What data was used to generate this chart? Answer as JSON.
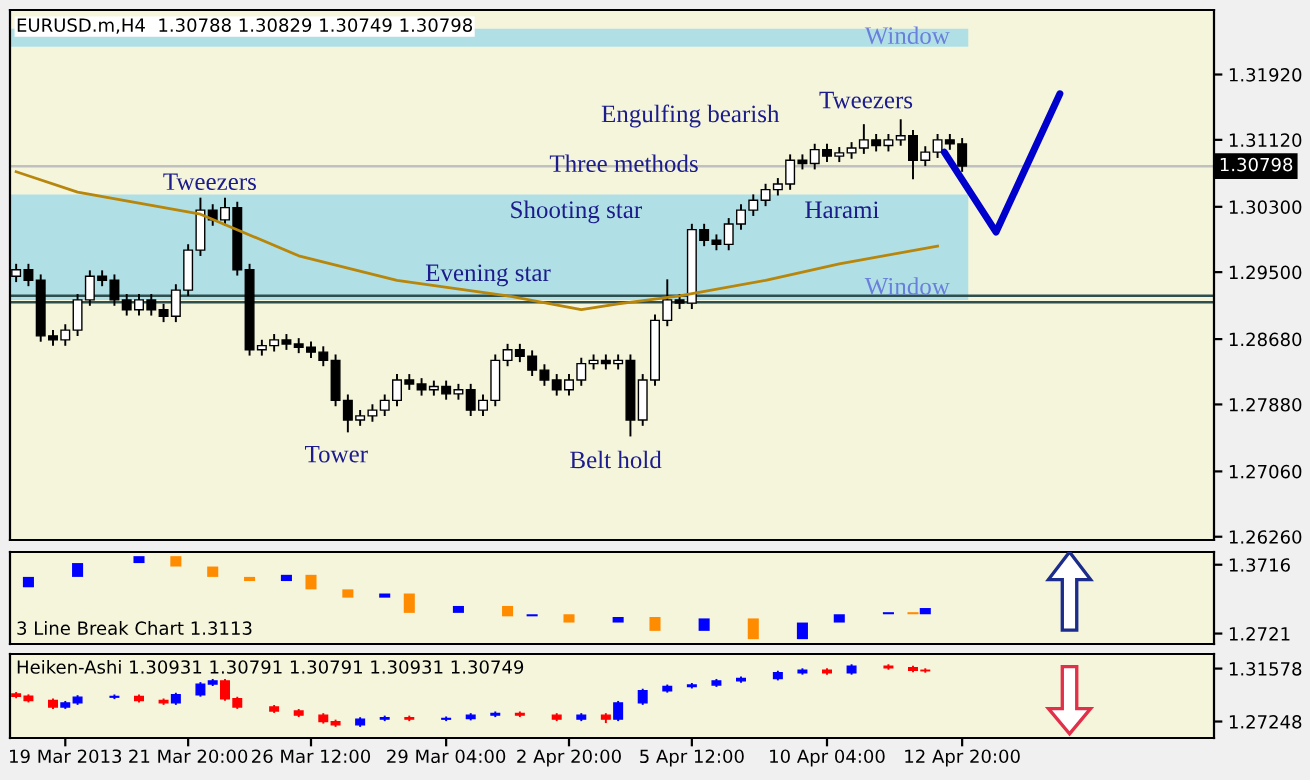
{
  "chart_data": [
    {
      "type": "candlestick",
      "title": "EURUSD.m,H4  1.30788 1.30829 1.30749 1.30798",
      "tick_labels": "y",
      "ylim": [
        1.2622,
        1.3271
      ],
      "yticks": [
        {
          "value": 1.3192,
          "label": "1.31920"
        },
        {
          "value": 1.3112,
          "label": "1.31120"
        },
        {
          "value": 1.303,
          "label": "1.30300"
        },
        {
          "value": 1.295,
          "label": "1.29500"
        },
        {
          "value": 1.2868,
          "label": "1.28680"
        },
        {
          "value": 1.2788,
          "label": "1.27880"
        },
        {
          "value": 1.2706,
          "label": "1.27060"
        },
        {
          "value": 1.2626,
          "label": "1.26260"
        }
      ],
      "categories": [
        null,
        null,
        null,
        null,
        null,
        null,
        null,
        null,
        null,
        null,
        null,
        null,
        null,
        null,
        null,
        null,
        null,
        null,
        null,
        null,
        null,
        null,
        null,
        null,
        null,
        null,
        null,
        null,
        null,
        null,
        null,
        null,
        null,
        null,
        null,
        null,
        null,
        null,
        null,
        null,
        null,
        null,
        null,
        null,
        null,
        null,
        null,
        null,
        null,
        null,
        null,
        null,
        null,
        null,
        null,
        null,
        null,
        null,
        null,
        null,
        null,
        null,
        null,
        null,
        null,
        null,
        null,
        null,
        null,
        null,
        null,
        null,
        null,
        null,
        null,
        null,
        null,
        null,
        null,
        null,
        null,
        null,
        null,
        null,
        null,
        null,
        null,
        null,
        null,
        null,
        null,
        null,
        null,
        null,
        null,
        null,
        null,
        null
      ],
      "ohlc": [
        [
          1.2945,
          1.2959,
          1.2939,
          1.2953
        ],
        [
          1.2953,
          1.2959,
          1.2934,
          1.294
        ],
        [
          1.294,
          1.2946,
          1.2866,
          1.2872
        ],
        [
          1.2872,
          1.2878,
          1.2861,
          1.2867
        ],
        [
          1.2867,
          1.2885,
          1.2861,
          1.2879
        ],
        [
          1.2879,
          1.2922,
          1.2873,
          1.2916
        ],
        [
          1.2916,
          1.2951,
          1.291,
          1.2945
        ],
        [
          1.2945,
          1.2951,
          1.2934,
          1.294
        ],
        [
          1.294,
          1.2946,
          1.291,
          1.2916
        ],
        [
          1.2916,
          1.2922,
          1.2898,
          1.2904
        ],
        [
          1.2904,
          1.2922,
          1.2898,
          1.2916
        ],
        [
          1.2916,
          1.2922,
          1.2898,
          1.2904
        ],
        [
          1.2904,
          1.291,
          1.289,
          1.2896
        ],
        [
          1.2896,
          1.2934,
          1.289,
          1.2928
        ],
        [
          1.2928,
          1.2983,
          1.2922,
          1.2977
        ],
        [
          1.2977,
          1.304,
          1.2971,
          1.3026
        ],
        [
          1.3026,
          1.3032,
          1.3008,
          1.3014
        ],
        [
          1.3014,
          1.304,
          1.3008,
          1.3029
        ],
        [
          1.3029,
          1.3035,
          1.2947,
          1.2953
        ],
        [
          1.2953,
          1.2959,
          1.2849,
          1.2855
        ],
        [
          1.2855,
          1.2866,
          1.2849,
          1.286
        ],
        [
          1.286,
          1.2873,
          1.2854,
          1.2867
        ],
        [
          1.2867,
          1.2873,
          1.2856,
          1.2862
        ],
        [
          1.2862,
          1.2868,
          1.2852,
          1.2858
        ],
        [
          1.2858,
          1.2864,
          1.2846,
          1.2852
        ],
        [
          1.2852,
          1.2858,
          1.2836,
          1.2842
        ],
        [
          1.2842,
          1.2848,
          1.2787,
          1.2793
        ],
        [
          1.2793,
          1.2799,
          1.2755,
          1.2769
        ],
        [
          1.2769,
          1.278,
          1.2763,
          1.2774
        ],
        [
          1.2774,
          1.2787,
          1.2768,
          1.2781
        ],
        [
          1.2781,
          1.2799,
          1.2775,
          1.2793
        ],
        [
          1.2793,
          1.2824,
          1.2787,
          1.2818
        ],
        [
          1.2818,
          1.2824,
          1.2807,
          1.2813
        ],
        [
          1.2813,
          1.2819,
          1.28,
          1.2806
        ],
        [
          1.2806,
          1.2816,
          1.28,
          1.281
        ],
        [
          1.281,
          1.2816,
          1.2795,
          1.2801
        ],
        [
          1.2801,
          1.2812,
          1.2795,
          1.2806
        ],
        [
          1.2806,
          1.2812,
          1.2775,
          1.2781
        ],
        [
          1.2781,
          1.2799,
          1.2775,
          1.2793
        ],
        [
          1.2793,
          1.2848,
          1.2787,
          1.2842
        ],
        [
          1.2842,
          1.2861,
          1.2836,
          1.2855
        ],
        [
          1.2855,
          1.2861,
          1.2841,
          1.2847
        ],
        [
          1.2847,
          1.2853,
          1.2824,
          1.283
        ],
        [
          1.283,
          1.2836,
          1.2812,
          1.2818
        ],
        [
          1.2818,
          1.2824,
          1.28,
          1.2806
        ],
        [
          1.2806,
          1.2824,
          1.28,
          1.2818
        ],
        [
          1.2818,
          1.2844,
          1.2812,
          1.2838
        ],
        [
          1.2838,
          1.2848,
          1.2832,
          1.2842
        ],
        [
          1.2842,
          1.2848,
          1.2832,
          1.2838
        ],
        [
          1.2838,
          1.2848,
          1.2832,
          1.2842
        ],
        [
          1.2842,
          1.2848,
          1.275,
          1.2769
        ],
        [
          1.2769,
          1.2824,
          1.2763,
          1.2818
        ],
        [
          1.2818,
          1.2897,
          1.2812,
          1.2891
        ],
        [
          1.2891,
          1.294,
          1.2885,
          1.2916
        ],
        [
          1.2916,
          1.2922,
          1.2906,
          1.2912
        ],
        [
          1.2912,
          1.3008,
          1.2906,
          1.3002
        ],
        [
          1.3002,
          1.3008,
          1.2983,
          1.2989
        ],
        [
          1.2989,
          1.2995,
          1.2978,
          1.2984
        ],
        [
          1.2984,
          1.3015,
          1.2978,
          1.3009
        ],
        [
          1.3009,
          1.3032,
          1.3003,
          1.3026
        ],
        [
          1.3026,
          1.3044,
          1.302,
          1.3038
        ],
        [
          1.3038,
          1.3057,
          1.3032,
          1.3051
        ],
        [
          1.3051,
          1.3064,
          1.3045,
          1.3058
        ],
        [
          1.3058,
          1.3093,
          1.3052,
          1.3087
        ],
        [
          1.3087,
          1.3093,
          1.3077,
          1.3083
        ],
        [
          1.3083,
          1.3106,
          1.3077,
          1.31
        ],
        [
          1.31,
          1.3106,
          1.3086,
          1.3092
        ],
        [
          1.3092,
          1.3102,
          1.3086,
          1.3096
        ],
        [
          1.3096,
          1.3108,
          1.309,
          1.3102
        ],
        [
          1.3102,
          1.313,
          1.3096,
          1.3112
        ],
        [
          1.3112,
          1.3118,
          1.3099,
          1.3105
        ],
        [
          1.3105,
          1.3118,
          1.3099,
          1.3112
        ],
        [
          1.3112,
          1.3136,
          1.3106,
          1.3117
        ],
        [
          1.3117,
          1.3123,
          1.3065,
          1.3087
        ],
        [
          1.3087,
          1.3103,
          1.3081,
          1.3097
        ],
        [
          1.3097,
          1.3118,
          1.3091,
          1.3112
        ],
        [
          1.3112,
          1.3118,
          1.3101,
          1.3107
        ],
        [
          1.3107,
          1.3113,
          1.3074,
          1.308
        ],
        null,
        null,
        null,
        null,
        null,
        null,
        null,
        null,
        null,
        null,
        null,
        null,
        null,
        null,
        null,
        null,
        null,
        null,
        null,
        null
      ],
      "colors": [
        "#ffffff",
        "#000000",
        "#000000",
        "#000000",
        "#ffffff",
        "#ffffff",
        "#ffffff",
        "#000000",
        "#000000",
        "#000000",
        "#ffffff",
        "#000000",
        "#000000",
        "#ffffff",
        "#ffffff",
        "#ffffff",
        "#000000",
        "#ffffff",
        "#000000",
        "#000000",
        "#ffffff",
        "#ffffff",
        "#000000",
        "#000000",
        "#000000",
        "#000000",
        "#000000",
        "#000000",
        "#ffffff",
        "#ffffff",
        "#ffffff",
        "#ffffff",
        "#000000",
        "#000000",
        "#ffffff",
        "#000000",
        "#ffffff",
        "#000000",
        "#ffffff",
        "#ffffff",
        "#ffffff",
        "#000000",
        "#000000",
        "#000000",
        "#000000",
        "#ffffff",
        "#ffffff",
        "#ffffff",
        "#000000",
        "#ffffff",
        "#000000",
        "#ffffff",
        "#ffffff",
        "#ffffff",
        "#000000",
        "#ffffff",
        "#000000",
        "#000000",
        "#ffffff",
        "#ffffff",
        "#ffffff",
        "#ffffff",
        "#ffffff",
        "#ffffff",
        "#000000",
        "#ffffff",
        "#000000",
        "#ffffff",
        "#ffffff",
        "#ffffff",
        "#000000",
        "#ffffff",
        "#ffffff",
        "#000000",
        "#ffffff",
        "#ffffff",
        "#000000",
        "#000000",
        null,
        null,
        null,
        null,
        null,
        null,
        null,
        null,
        null,
        null,
        null,
        null,
        null,
        null,
        null,
        null,
        null,
        null,
        null,
        null
      ],
      "series": [
        {
          "type": "line",
          "color": "#b8860b",
          "values": [
            1.3073,
            null,
            null,
            null,
            null,
            1.3048,
            null,
            null,
            null,
            null,
            null,
            null,
            null,
            null,
            null,
            1.3021,
            null,
            null,
            null,
            null,
            null,
            null,
            null,
            1.297,
            null,
            null,
            null,
            null,
            null,
            null,
            null,
            1.294,
            null,
            null,
            null,
            null,
            null,
            null,
            null,
            null,
            1.2921,
            null,
            null,
            null,
            null,
            null,
            1.2904,
            null,
            null,
            1.2911,
            null,
            null,
            null,
            null,
            1.2921,
            null,
            null,
            null,
            null,
            null,
            null,
            1.294,
            null,
            null,
            null,
            null,
            null,
            1.296,
            null,
            null,
            null,
            null,
            null,
            null,
            null,
            1.2982,
            null,
            null,
            null,
            null,
            null,
            null,
            null,
            null,
            null,
            null,
            null,
            null,
            null,
            null,
            null,
            null,
            null,
            null,
            null,
            null,
            null,
            null
          ]
        }
      ],
      "bands": [
        {
          "axis": "y",
          "from": 1.3226,
          "to": 1.3248,
          "label": "Window",
          "color": "#b0e0e6"
        },
        {
          "axis": "y",
          "from": 1.2916,
          "to": 1.3045,
          "label": "Window",
          "color": "#b0e0e6"
        }
      ],
      "ref_lines": [
        {
          "axis": "y",
          "value": 1.30798,
          "label": "1.30798",
          "color": "#c0c0c0"
        },
        {
          "axis": "y",
          "value": 1.2921,
          "color": "#2f4f4f"
        },
        {
          "axis": "y",
          "value": 1.2913,
          "color": "#2f4f4f"
        }
      ],
      "annotations": [
        "Tweezers",
        "Tower",
        "Evening star",
        "Belt hold",
        "Shooting star",
        "Three methods",
        "Engulfing bearish",
        "Tweezers",
        "Harami"
      ]
    },
    {
      "type": "bar",
      "title": "3 Line Break Chart 1.3113",
      "tick_labels": "y",
      "ylim": [
        1.257,
        1.39
      ],
      "yticks": [
        1.3716,
        1.2721
      ],
      "categories": [
        null,
        null,
        null,
        null,
        null,
        null,
        null,
        null,
        null,
        null,
        null,
        null,
        null,
        null,
        null,
        null,
        null,
        null,
        null,
        null,
        null,
        null,
        null,
        null,
        null,
        null,
        null,
        null,
        null,
        null,
        null,
        null,
        null,
        null,
        null,
        null,
        null,
        null,
        null,
        null,
        null,
        null,
        null,
        null,
        null,
        null,
        null,
        null,
        null,
        null,
        null,
        null,
        null,
        null,
        null,
        null,
        null,
        null,
        null,
        null,
        null,
        null,
        null,
        null,
        null,
        null,
        null,
        null,
        null,
        null,
        null,
        null,
        null,
        null,
        null,
        null,
        null,
        null,
        null,
        null,
        null,
        null,
        null,
        null,
        null,
        null,
        null,
        null,
        null,
        null,
        null,
        null,
        null,
        null,
        null,
        null,
        null,
        null
      ],
      "base": [
        null,
        1.339,
        null,
        null,
        null,
        1.354,
        null,
        null,
        null,
        null,
        1.374,
        null,
        null,
        1.384,
        null,
        null,
        1.369,
        null,
        null,
        1.354,
        null,
        null,
        1.348,
        null,
        1.357,
        null,
        null,
        1.336,
        null,
        null,
        1.324,
        null,
        1.33,
        null,
        null,
        null,
        1.302,
        null,
        null,
        null,
        1.312,
        null,
        1.297,
        null,
        null,
        1.3,
        null,
        null,
        null,
        1.288,
        null,
        null,
        1.296,
        null,
        null,
        null,
        1.276,
        null,
        null,
        null,
        1.294,
        null,
        null,
        null,
        1.264,
        null,
        null,
        1.288,
        null,
        null,
        null,
        1.3,
        null,
        1.303,
        1.3,
        null,
        null,
        null,
        null,
        null,
        null,
        null,
        null,
        null,
        null,
        null,
        null,
        null,
        null,
        null,
        null,
        null,
        null,
        null,
        null,
        null,
        null,
        null
      ],
      "values": [
        null,
        0.015,
        null,
        null,
        null,
        0.02,
        null,
        null,
        null,
        null,
        0.01,
        null,
        null,
        -0.015,
        null,
        null,
        -0.015,
        null,
        null,
        -0.006,
        null,
        null,
        0.009,
        null,
        -0.021,
        null,
        null,
        -0.012,
        null,
        null,
        0.006,
        null,
        -0.028,
        null,
        null,
        null,
        0.01,
        null,
        null,
        null,
        -0.015,
        null,
        0.003,
        null,
        null,
        -0.012,
        null,
        null,
        null,
        0.008,
        null,
        null,
        -0.02,
        null,
        null,
        null,
        0.018,
        null,
        null,
        null,
        -0.03,
        null,
        null,
        null,
        0.024,
        null,
        null,
        0.012,
        null,
        null,
        null,
        0.003,
        null,
        -0.003,
        0.009,
        null,
        null,
        null,
        null,
        null,
        null,
        null,
        null,
        null,
        null,
        null,
        null,
        null,
        null,
        null,
        null,
        null,
        null,
        null,
        null,
        null,
        null,
        null
      ],
      "colors": [
        null,
        "#0000ff",
        null,
        null,
        null,
        "#0000ff",
        null,
        null,
        null,
        null,
        "#0000ff",
        null,
        null,
        "#ff8c00",
        null,
        null,
        "#ff8c00",
        null,
        null,
        "#ff8c00",
        null,
        null,
        "#0000ff",
        null,
        "#ff8c00",
        null,
        null,
        "#ff8c00",
        null,
        null,
        "#0000ff",
        null,
        "#ff8c00",
        null,
        null,
        null,
        "#0000ff",
        null,
        null,
        null,
        "#ff8c00",
        null,
        "#0000ff",
        null,
        null,
        "#ff8c00",
        null,
        null,
        null,
        "#0000ff",
        null,
        null,
        "#ff8c00",
        null,
        null,
        null,
        "#0000ff",
        null,
        null,
        null,
        "#ff8c00",
        null,
        null,
        null,
        "#0000ff",
        null,
        null,
        "#0000ff",
        null,
        null,
        null,
        "#0000ff",
        null,
        "#ff8c00",
        "#0000ff",
        null,
        null,
        null,
        null,
        null,
        null,
        null,
        null,
        null,
        null,
        null,
        null,
        null,
        null,
        null,
        null,
        null,
        null,
        null,
        null,
        null,
        null,
        null
      ]
    },
    {
      "type": "candlestick",
      "title": "Heiken-Ashi 1.30931 1.30791 1.30791 1.30931 1.30749",
      "ylim": [
        1.259,
        1.3277
      ],
      "yticks": [
        1.31578,
        1.27248
      ],
      "categories": [
        null,
        null,
        null,
        null,
        "19 Mar 2013",
        null,
        null,
        null,
        null,
        null,
        null,
        null,
        null,
        null,
        "21 Mar 20:00",
        null,
        null,
        null,
        null,
        null,
        null,
        null,
        null,
        null,
        "26 Mar 12:00",
        null,
        null,
        null,
        null,
        null,
        null,
        null,
        null,
        null,
        null,
        "29 Mar 04:00",
        null,
        null,
        null,
        null,
        null,
        null,
        null,
        null,
        null,
        "2 Apr 20:00",
        null,
        null,
        null,
        null,
        null,
        null,
        null,
        null,
        null,
        "5 Apr 12:00",
        null,
        null,
        null,
        null,
        null,
        null,
        null,
        null,
        null,
        null,
        "10 Apr 04:00",
        null,
        null,
        null,
        null,
        null,
        null,
        null,
        null,
        null,
        null,
        "12 Apr 20:00",
        null,
        null,
        null,
        null,
        null,
        null,
        null,
        null,
        null,
        null,
        null,
        null,
        null,
        null,
        null,
        null,
        null,
        null,
        null,
        null
      ],
      "ohlc": [
        [
          1.295,
          1.2958,
          1.2923,
          1.2931
        ],
        [
          1.2931,
          1.2939,
          1.2889,
          1.2897
        ],
        null,
        [
          1.2897,
          1.2905,
          1.2836,
          1.2844
        ],
        [
          1.2844,
          1.2885,
          1.2836,
          1.2877
        ],
        [
          1.2877,
          1.2932,
          1.2869,
          1.2924
        ],
        null,
        null,
        [
          1.2924,
          1.2938,
          1.2916,
          1.293
        ],
        null,
        [
          1.293,
          1.2938,
          1.2889,
          1.2897
        ],
        null,
        [
          1.2897,
          1.2905,
          1.2869,
          1.2877
        ],
        [
          1.2877,
          1.2952,
          1.2869,
          1.2944
        ],
        null,
        [
          1.2944,
          1.3039,
          1.2936,
          1.3031
        ],
        [
          1.3031,
          1.3065,
          1.3023,
          1.3057
        ],
        [
          1.3057,
          1.3065,
          1.2903,
          1.2911
        ],
        [
          1.2911,
          1.2919,
          1.2836,
          1.2844
        ],
        null,
        null,
        [
          1.2844,
          1.2852,
          1.2803,
          1.2811
        ],
        null,
        [
          1.2811,
          1.2819,
          1.2769,
          1.2777
        ],
        null,
        [
          1.2777,
          1.2785,
          1.2716,
          1.2724
        ],
        [
          1.2724,
          1.2732,
          1.2689,
          1.2697
        ],
        null,
        [
          1.2697,
          1.2752,
          1.2689,
          1.2744
        ],
        null,
        [
          1.2744,
          1.2765,
          1.2736,
          1.2757
        ],
        null,
        [
          1.2757,
          1.2765,
          1.2736,
          1.2744
        ],
        null,
        null,
        [
          1.2744,
          1.2758,
          1.2736,
          1.275
        ],
        null,
        [
          1.275,
          1.2785,
          1.2742,
          1.2777
        ],
        null,
        [
          1.2777,
          1.2799,
          1.2769,
          1.2791
        ],
        null,
        [
          1.2791,
          1.2799,
          1.2769,
          1.2777
        ],
        null,
        null,
        [
          1.2777,
          1.2785,
          1.2736,
          1.2744
        ],
        null,
        [
          1.2744,
          1.2785,
          1.2736,
          1.2777
        ],
        null,
        [
          1.2777,
          1.2785,
          1.272,
          1.2744
        ],
        [
          1.2744,
          1.2885,
          1.2736,
          1.2877
        ],
        null,
        [
          1.2877,
          1.2985,
          1.2869,
          1.2977
        ],
        null,
        [
          1.2977,
          1.3019,
          1.2969,
          1.3011
        ],
        null,
        [
          1.3011,
          1.3032,
          1.3003,
          1.3024
        ],
        null,
        [
          1.3024,
          1.3065,
          1.3016,
          1.3057
        ],
        null,
        [
          1.3057,
          1.3085,
          1.3049,
          1.3077
        ],
        null,
        null,
        [
          1.3077,
          1.3132,
          1.3069,
          1.3124
        ],
        null,
        [
          1.3124,
          1.3152,
          1.3116,
          1.3144
        ],
        null,
        [
          1.3144,
          1.3152,
          1.3116,
          1.3124
        ],
        null,
        [
          1.3124,
          1.3185,
          1.3116,
          1.3177
        ],
        null,
        null,
        [
          1.3177,
          1.3185,
          1.3156,
          1.3164
        ],
        null,
        [
          1.3164,
          1.3172,
          1.3136,
          1.3144
        ],
        [
          1.3144,
          1.3152,
          1.3132,
          1.314
        ],
        null,
        null,
        null,
        null,
        null,
        null,
        null,
        null,
        null,
        null,
        null,
        null,
        null,
        null,
        null,
        null,
        null,
        null,
        null,
        null,
        null,
        null,
        null
      ],
      "colors": [
        "#ff0000",
        "#ff0000",
        null,
        "#ff0000",
        "#0000ff",
        "#0000ff",
        null,
        null,
        "#0000ff",
        null,
        "#ff0000",
        null,
        "#ff0000",
        "#0000ff",
        null,
        "#0000ff",
        "#0000ff",
        "#ff0000",
        "#ff0000",
        null,
        null,
        "#ff0000",
        null,
        "#ff0000",
        null,
        "#ff0000",
        "#ff0000",
        null,
        "#0000ff",
        null,
        "#0000ff",
        null,
        "#ff0000",
        null,
        null,
        "#0000ff",
        null,
        "#0000ff",
        null,
        "#0000ff",
        null,
        "#ff0000",
        null,
        null,
        "#ff0000",
        null,
        "#0000ff",
        null,
        "#ff0000",
        "#0000ff",
        null,
        "#0000ff",
        null,
        "#0000ff",
        null,
        "#0000ff",
        null,
        "#0000ff",
        null,
        "#0000ff",
        null,
        null,
        "#0000ff",
        null,
        "#0000ff",
        null,
        "#ff0000",
        null,
        "#0000ff",
        null,
        null,
        "#ff0000",
        null,
        "#ff0000",
        "#ff0000",
        null,
        null,
        null,
        null,
        null,
        null,
        null,
        null,
        null,
        null,
        null,
        null,
        null,
        null,
        null,
        null,
        null,
        null,
        null,
        null,
        null,
        null,
        null
      ]
    }
  ]
}
